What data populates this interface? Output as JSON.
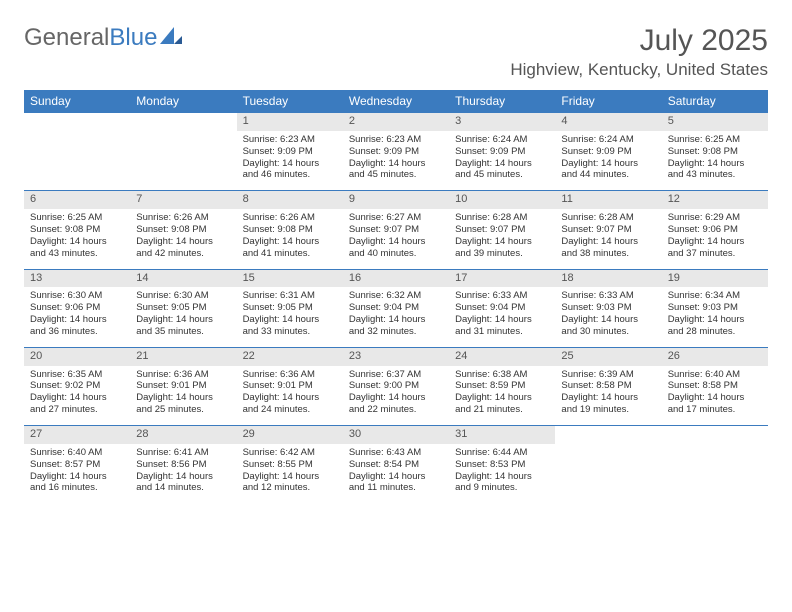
{
  "brand": {
    "part1": "General",
    "part2": "Blue"
  },
  "title": "July 2025",
  "location": "Highview, Kentucky, United States",
  "colors": {
    "header_bg": "#3b7bbf",
    "header_text": "#ffffff",
    "daynum_bg": "#e8e8e8",
    "text": "#333333",
    "border": "#3b7bbf"
  },
  "day_headers": [
    "Sunday",
    "Monday",
    "Tuesday",
    "Wednesday",
    "Thursday",
    "Friday",
    "Saturday"
  ],
  "weeks": [
    [
      null,
      null,
      {
        "n": "1",
        "sr": "6:23 AM",
        "ss": "9:09 PM",
        "dl": "14 hours and 46 minutes."
      },
      {
        "n": "2",
        "sr": "6:23 AM",
        "ss": "9:09 PM",
        "dl": "14 hours and 45 minutes."
      },
      {
        "n": "3",
        "sr": "6:24 AM",
        "ss": "9:09 PM",
        "dl": "14 hours and 45 minutes."
      },
      {
        "n": "4",
        "sr": "6:24 AM",
        "ss": "9:09 PM",
        "dl": "14 hours and 44 minutes."
      },
      {
        "n": "5",
        "sr": "6:25 AM",
        "ss": "9:08 PM",
        "dl": "14 hours and 43 minutes."
      }
    ],
    [
      {
        "n": "6",
        "sr": "6:25 AM",
        "ss": "9:08 PM",
        "dl": "14 hours and 43 minutes."
      },
      {
        "n": "7",
        "sr": "6:26 AM",
        "ss": "9:08 PM",
        "dl": "14 hours and 42 minutes."
      },
      {
        "n": "8",
        "sr": "6:26 AM",
        "ss": "9:08 PM",
        "dl": "14 hours and 41 minutes."
      },
      {
        "n": "9",
        "sr": "6:27 AM",
        "ss": "9:07 PM",
        "dl": "14 hours and 40 minutes."
      },
      {
        "n": "10",
        "sr": "6:28 AM",
        "ss": "9:07 PM",
        "dl": "14 hours and 39 minutes."
      },
      {
        "n": "11",
        "sr": "6:28 AM",
        "ss": "9:07 PM",
        "dl": "14 hours and 38 minutes."
      },
      {
        "n": "12",
        "sr": "6:29 AM",
        "ss": "9:06 PM",
        "dl": "14 hours and 37 minutes."
      }
    ],
    [
      {
        "n": "13",
        "sr": "6:30 AM",
        "ss": "9:06 PM",
        "dl": "14 hours and 36 minutes."
      },
      {
        "n": "14",
        "sr": "6:30 AM",
        "ss": "9:05 PM",
        "dl": "14 hours and 35 minutes."
      },
      {
        "n": "15",
        "sr": "6:31 AM",
        "ss": "9:05 PM",
        "dl": "14 hours and 33 minutes."
      },
      {
        "n": "16",
        "sr": "6:32 AM",
        "ss": "9:04 PM",
        "dl": "14 hours and 32 minutes."
      },
      {
        "n": "17",
        "sr": "6:33 AM",
        "ss": "9:04 PM",
        "dl": "14 hours and 31 minutes."
      },
      {
        "n": "18",
        "sr": "6:33 AM",
        "ss": "9:03 PM",
        "dl": "14 hours and 30 minutes."
      },
      {
        "n": "19",
        "sr": "6:34 AM",
        "ss": "9:03 PM",
        "dl": "14 hours and 28 minutes."
      }
    ],
    [
      {
        "n": "20",
        "sr": "6:35 AM",
        "ss": "9:02 PM",
        "dl": "14 hours and 27 minutes."
      },
      {
        "n": "21",
        "sr": "6:36 AM",
        "ss": "9:01 PM",
        "dl": "14 hours and 25 minutes."
      },
      {
        "n": "22",
        "sr": "6:36 AM",
        "ss": "9:01 PM",
        "dl": "14 hours and 24 minutes."
      },
      {
        "n": "23",
        "sr": "6:37 AM",
        "ss": "9:00 PM",
        "dl": "14 hours and 22 minutes."
      },
      {
        "n": "24",
        "sr": "6:38 AM",
        "ss": "8:59 PM",
        "dl": "14 hours and 21 minutes."
      },
      {
        "n": "25",
        "sr": "6:39 AM",
        "ss": "8:58 PM",
        "dl": "14 hours and 19 minutes."
      },
      {
        "n": "26",
        "sr": "6:40 AM",
        "ss": "8:58 PM",
        "dl": "14 hours and 17 minutes."
      }
    ],
    [
      {
        "n": "27",
        "sr": "6:40 AM",
        "ss": "8:57 PM",
        "dl": "14 hours and 16 minutes."
      },
      {
        "n": "28",
        "sr": "6:41 AM",
        "ss": "8:56 PM",
        "dl": "14 hours and 14 minutes."
      },
      {
        "n": "29",
        "sr": "6:42 AM",
        "ss": "8:55 PM",
        "dl": "14 hours and 12 minutes."
      },
      {
        "n": "30",
        "sr": "6:43 AM",
        "ss": "8:54 PM",
        "dl": "14 hours and 11 minutes."
      },
      {
        "n": "31",
        "sr": "6:44 AM",
        "ss": "8:53 PM",
        "dl": "14 hours and 9 minutes."
      },
      null,
      null
    ]
  ],
  "labels": {
    "sunrise": "Sunrise:",
    "sunset": "Sunset:",
    "daylight": "Daylight:"
  }
}
